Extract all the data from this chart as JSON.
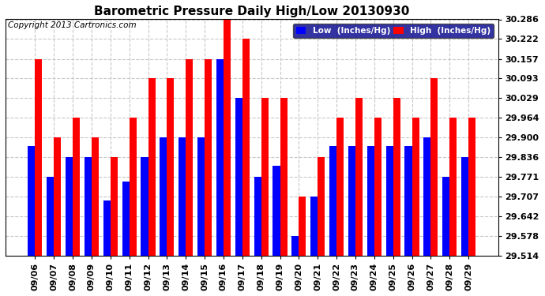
{
  "title": "Barometric Pressure Daily High/Low 20130930",
  "copyright": "Copyright 2013 Cartronics.com",
  "legend_low": "Low  (Inches/Hg)",
  "legend_high": "High  (Inches/Hg)",
  "dates": [
    "09/06",
    "09/07",
    "09/08",
    "09/09",
    "09/10",
    "09/11",
    "09/12",
    "09/13",
    "09/14",
    "09/15",
    "09/16",
    "09/17",
    "09/18",
    "09/19",
    "09/20",
    "09/21",
    "09/22",
    "09/23",
    "09/24",
    "09/25",
    "09/26",
    "09/27",
    "09/28",
    "09/29"
  ],
  "high": [
    30.157,
    29.9,
    29.964,
    29.9,
    29.836,
    29.964,
    30.093,
    30.093,
    30.157,
    30.157,
    30.286,
    30.222,
    30.029,
    30.029,
    29.707,
    29.836,
    29.964,
    30.029,
    29.964,
    30.029,
    29.964,
    30.093,
    29.964,
    29.964
  ],
  "low": [
    29.871,
    29.771,
    29.836,
    29.836,
    29.693,
    29.757,
    29.836,
    29.9,
    29.9,
    29.9,
    30.157,
    30.029,
    29.771,
    29.807,
    29.578,
    29.707,
    29.871,
    29.871,
    29.871,
    29.871,
    29.871,
    29.9,
    29.771,
    29.836
  ],
  "ymin": 29.514,
  "ymax": 30.286,
  "yticks": [
    29.514,
    29.578,
    29.642,
    29.707,
    29.771,
    29.836,
    29.9,
    29.964,
    30.029,
    30.093,
    30.157,
    30.222,
    30.286
  ],
  "bar_width": 0.38,
  "low_color": "#0000ff",
  "high_color": "#ff0000",
  "bg_color": "#ffffff",
  "grid_color": "#c8c8c8",
  "title_fontsize": 11,
  "tick_fontsize": 8,
  "copyright_fontsize": 7.5
}
